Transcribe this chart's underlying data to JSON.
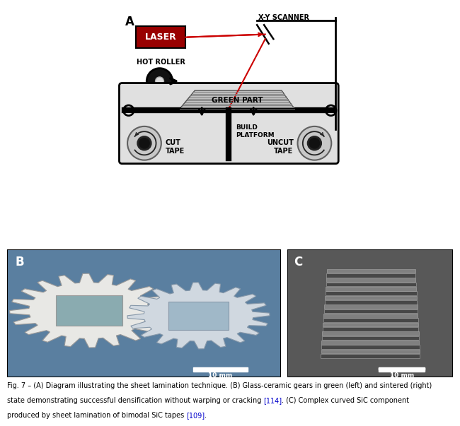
{
  "figure_label_A": "A",
  "figure_label_B": "B",
  "figure_label_C": "C",
  "label_xy_scanner": "X-Y SCANNER",
  "label_laser": "LASER",
  "label_hot_roller": "HOT ROLLER",
  "label_green_part": "GREEN PART",
  "label_build_platform": "BUILD\nPLATFORM",
  "label_cut_tape": "CUT\nTAPE",
  "label_uncut_tape": "UNCUT\nTAPE",
  "caption_line1": "Fig. 7 – (A) Diagram illustrating the sheet lamination technique. (B) Glass-ceramic gears in green (left) and sintered (right)",
  "caption_line2": "state demonstrating successful densification without warping or cracking [114]. (C) Complex curved SiC component",
  "caption_line3": "produced by sheet lamination of bimodal SiC tapes [109].",
  "bg_color": "#ffffff",
  "laser_color": "#aa0000",
  "beam_color": "#cc0000",
  "machine_bg": "#e0e0e0",
  "green_part_color": "#c8c8c8"
}
